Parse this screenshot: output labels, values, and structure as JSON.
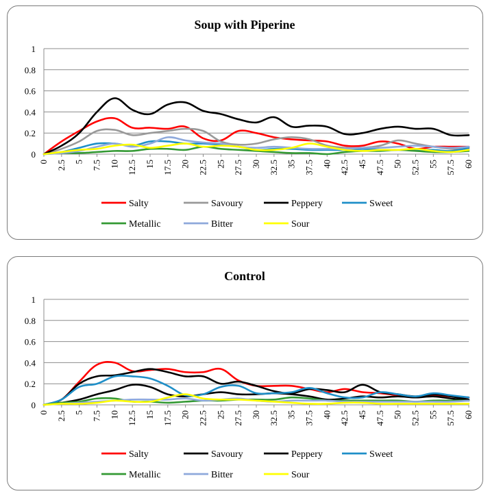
{
  "chart_data": [
    {
      "type": "line",
      "title": "Soup with Piperine",
      "xlabel": "",
      "ylabel": "",
      "ylim": [
        0,
        1
      ],
      "yticks": [
        "0",
        "0.2",
        "0.4",
        "0.6",
        "0.8",
        "1"
      ],
      "x": [
        "0",
        "2.5",
        "5",
        "7.5",
        "10",
        "12.5",
        "15",
        "17.5",
        "20",
        "22.5",
        "25",
        "27.5",
        "30",
        "32.5",
        "35",
        "37.5",
        "40",
        "42.5",
        "45",
        "47.5",
        "50",
        "52.5",
        "55",
        "57.5",
        "60"
      ],
      "series": [
        {
          "name": "Salty",
          "color": "#ff0000",
          "values": [
            0,
            0.12,
            0.22,
            0.31,
            0.34,
            0.25,
            0.25,
            0.24,
            0.26,
            0.15,
            0.13,
            0.22,
            0.2,
            0.16,
            0.14,
            0.13,
            0.12,
            0.08,
            0.08,
            0.12,
            0.1,
            0.05,
            0.07,
            0.07,
            0.07
          ]
        },
        {
          "name": "Savoury",
          "color": "#999999",
          "values": [
            0,
            0.05,
            0.12,
            0.22,
            0.23,
            0.18,
            0.2,
            0.22,
            0.24,
            0.22,
            0.12,
            0.09,
            0.1,
            0.14,
            0.16,
            0.14,
            0.08,
            0.06,
            0.06,
            0.08,
            0.13,
            0.1,
            0.07,
            0.05,
            0.05
          ]
        },
        {
          "name": "Peppery",
          "color": "#000000",
          "values": [
            0,
            0.08,
            0.2,
            0.4,
            0.53,
            0.42,
            0.38,
            0.47,
            0.49,
            0.41,
            0.38,
            0.33,
            0.3,
            0.35,
            0.26,
            0.27,
            0.26,
            0.19,
            0.2,
            0.24,
            0.26,
            0.24,
            0.24,
            0.18,
            0.18
          ]
        },
        {
          "name": "Sweet",
          "color": "#1f8fc8",
          "values": [
            0,
            0.02,
            0.06,
            0.1,
            0.1,
            0.08,
            0.12,
            0.12,
            0.1,
            0.1,
            0.09,
            0.07,
            0.04,
            0.05,
            0.05,
            0.04,
            0.04,
            0.04,
            0.05,
            0.04,
            0.04,
            0.04,
            0.04,
            0.03,
            0.06
          ]
        },
        {
          "name": "Metallic",
          "color": "#339933",
          "values": [
            0,
            0.01,
            0.01,
            0.02,
            0.03,
            0.03,
            0.05,
            0.05,
            0.04,
            0.07,
            0.05,
            0.04,
            0.03,
            0.02,
            0.01,
            0.01,
            0.0,
            0.02,
            0.03,
            0.03,
            0.04,
            0.03,
            0.02,
            0.02,
            0.03
          ]
        },
        {
          "name": "Bitter",
          "color": "#8ea9db",
          "values": [
            0,
            0.01,
            0.03,
            0.07,
            0.1,
            0.07,
            0.1,
            0.16,
            0.13,
            0.11,
            0.1,
            0.07,
            0.06,
            0.07,
            0.06,
            0.05,
            0.05,
            0.05,
            0.06,
            0.06,
            0.07,
            0.08,
            0.07,
            0.06,
            0.07
          ]
        },
        {
          "name": "Sour",
          "color": "#ffff00",
          "values": [
            0,
            0.02,
            0.04,
            0.05,
            0.08,
            0.09,
            0.06,
            0.08,
            0.1,
            0.07,
            0.08,
            0.07,
            0.04,
            0.04,
            0.06,
            0.1,
            0.07,
            0.04,
            0.03,
            0.04,
            0.04,
            0.05,
            0.03,
            0.02,
            0.04
          ]
        }
      ],
      "legend": "bottom"
    },
    {
      "type": "line",
      "title": "Control",
      "xlabel": "",
      "ylabel": "",
      "ylim": [
        0,
        1
      ],
      "yticks": [
        "0",
        "0.2",
        "0.4",
        "0.6",
        "0.8",
        "1"
      ],
      "x": [
        "0",
        "2.5",
        "5",
        "7.5",
        "10",
        "12.5",
        "15",
        "17.5",
        "20",
        "22.5",
        "25",
        "27.5",
        "30",
        "32.5",
        "35",
        "37.5",
        "40",
        "42.5",
        "45",
        "47.5",
        "50",
        "52.5",
        "55",
        "57.5",
        "60"
      ],
      "series": [
        {
          "name": "Salty",
          "color": "#ff0000",
          "values": [
            0,
            0.05,
            0.22,
            0.38,
            0.4,
            0.32,
            0.33,
            0.34,
            0.31,
            0.31,
            0.34,
            0.23,
            0.18,
            0.18,
            0.18,
            0.15,
            0.12,
            0.15,
            0.12,
            0.11,
            0.09,
            0.07,
            0.09,
            0.08,
            0.07
          ]
        },
        {
          "name": "Savoury",
          "color": "#000000",
          "values": [
            0,
            0.05,
            0.2,
            0.27,
            0.28,
            0.31,
            0.34,
            0.31,
            0.27,
            0.27,
            0.2,
            0.22,
            0.18,
            0.13,
            0.11,
            0.15,
            0.14,
            0.12,
            0.19,
            0.12,
            0.1,
            0.08,
            0.1,
            0.08,
            0.05
          ]
        },
        {
          "name": "Peppery",
          "color": "#000000",
          "values": [
            0,
            0.02,
            0.05,
            0.1,
            0.14,
            0.19,
            0.17,
            0.1,
            0.08,
            0.1,
            0.12,
            0.1,
            0.1,
            0.11,
            0.1,
            0.08,
            0.05,
            0.06,
            0.08,
            0.07,
            0.08,
            0.07,
            0.08,
            0.06,
            0.04
          ]
        },
        {
          "name": "Sweet",
          "color": "#1f8fc8",
          "values": [
            0,
            0.05,
            0.17,
            0.2,
            0.27,
            0.27,
            0.25,
            0.18,
            0.09,
            0.1,
            0.17,
            0.18,
            0.11,
            0.11,
            0.12,
            0.16,
            0.11,
            0.07,
            0.07,
            0.12,
            0.1,
            0.08,
            0.11,
            0.09,
            0.07
          ]
        },
        {
          "name": "Metallic",
          "color": "#339933",
          "values": [
            0,
            0.02,
            0.03,
            0.06,
            0.06,
            0.03,
            0.03,
            0.02,
            0.03,
            0.04,
            0.04,
            0.05,
            0.05,
            0.05,
            0.07,
            0.06,
            0.04,
            0.04,
            0.04,
            0.04,
            0.04,
            0.03,
            0.04,
            0.04,
            0.04
          ]
        },
        {
          "name": "Bitter",
          "color": "#8ea9db",
          "values": [
            0,
            0.01,
            0.02,
            0.03,
            0.04,
            0.05,
            0.05,
            0.05,
            0.06,
            0.04,
            0.05,
            0.06,
            0.04,
            0.03,
            0.04,
            0.04,
            0.04,
            0.03,
            0.03,
            0.03,
            0.03,
            0.03,
            0.03,
            0.03,
            0.04
          ]
        },
        {
          "name": "Sour",
          "color": "#ffff00",
          "values": [
            0,
            0.01,
            0.01,
            0.02,
            0.04,
            0.03,
            0.03,
            0.07,
            0.1,
            0.06,
            0.05,
            0.05,
            0.04,
            0.03,
            0.02,
            0.01,
            0.01,
            0.02,
            0.02,
            0.01,
            0.01,
            0.01,
            0.01,
            0.01,
            0.01
          ]
        }
      ],
      "legend": "bottom"
    }
  ]
}
